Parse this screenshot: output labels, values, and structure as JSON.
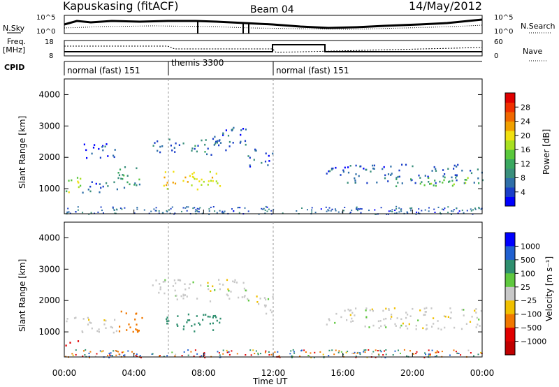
{
  "header": {
    "station": "Kapuskasing (fitACF)",
    "beam": "Beam 04",
    "date": "14/May/2012"
  },
  "top_panels": {
    "nsky_label": "N.Sky",
    "nsearch_label": "N.Search",
    "freq_label": "Freq.",
    "freq_unit": "[MHz]",
    "nave_label": "Nave",
    "cpid_label": "CPID",
    "noise_ticks_left": [
      "10^5",
      "10^0"
    ],
    "noise_ticks_right": [
      "10^5",
      "10^0"
    ],
    "freq_ticks_left": [
      "18",
      "8"
    ],
    "nave_ticks_right": [
      "60",
      "0"
    ]
  },
  "cpid_segments": [
    {
      "label": "normal (fast) 151",
      "start_hr": 0,
      "end_hr": 6
    },
    {
      "label": "themis 3300",
      "start_hr": 6,
      "end_hr": 12
    },
    {
      "label": "normal (fast) 151",
      "start_hr": 12,
      "end_hr": 24
    }
  ],
  "colors": {
    "power_scale": [
      "#0000ff",
      "#1b3fc8",
      "#2f6fa8",
      "#3a8f7c",
      "#3aa860",
      "#5ac83c",
      "#a8e020",
      "#f0e010",
      "#f0a000",
      "#f06800",
      "#f03000",
      "#e00000"
    ],
    "velocity_scale": [
      "#0000ff",
      "#1f5fd0",
      "#2f8f8f",
      "#2f9f5f",
      "#5fd03f",
      "#c8c8c8",
      "#c8c8c8",
      "#f0e010",
      "#f0a000",
      "#f07000",
      "#f03000",
      "#e00000"
    ]
  },
  "chart_data": [
    {
      "type": "heatmap",
      "title": "Power",
      "ylabel": "Slant Range [km]",
      "xlabel": "Time UT",
      "xlim": [
        0,
        24
      ],
      "ylim": [
        200,
        4500
      ],
      "x_ticks": [
        "00:00",
        "04:00",
        "08:00",
        "12:00",
        "16:00",
        "20:00",
        "00:00"
      ],
      "y_ticks": [
        1000,
        2000,
        3000,
        4000
      ],
      "colorbar_label": "Power [dB]",
      "colorbar_ticks": [
        4,
        8,
        12,
        16,
        20,
        24,
        28
      ],
      "regions": [
        {
          "t0": 0.0,
          "t1": 1.0,
          "r0": 900,
          "r1": 1500,
          "val": 16
        },
        {
          "t0": 1.0,
          "t1": 3.0,
          "r0": 900,
          "r1": 1300,
          "val": 6
        },
        {
          "t0": 1.0,
          "t1": 3.0,
          "r0": 2000,
          "r1": 2500,
          "val": 5
        },
        {
          "t0": 3.0,
          "t1": 4.5,
          "r0": 1000,
          "r1": 1800,
          "val": 10
        },
        {
          "t0": 5.0,
          "t1": 9.0,
          "r0": 2100,
          "r1": 2600,
          "val": 7
        },
        {
          "t0": 5.5,
          "t1": 9.0,
          "r0": 1000,
          "r1": 1600,
          "val": 20
        },
        {
          "t0": 8.5,
          "t1": 10.5,
          "r0": 2200,
          "r1": 3000,
          "val": 6
        },
        {
          "t0": 10.5,
          "t1": 12.0,
          "r0": 1700,
          "r1": 2300,
          "val": 6
        },
        {
          "t0": 15.0,
          "t1": 24.0,
          "r0": 1200,
          "r1": 1800,
          "val": 6
        },
        {
          "t0": 19.0,
          "t1": 24.0,
          "r0": 1100,
          "r1": 1400,
          "val": 14
        }
      ]
    },
    {
      "type": "heatmap",
      "title": "Velocity",
      "ylabel": "Slant Range [km]",
      "xlabel": "Time UT",
      "xlim": [
        0,
        24
      ],
      "ylim": [
        200,
        4500
      ],
      "x_ticks": [
        "00:00",
        "04:00",
        "08:00",
        "12:00",
        "16:00",
        "20:00",
        "00:00"
      ],
      "y_ticks": [
        1000,
        2000,
        3000,
        4000
      ],
      "colorbar_label": "Velocity [m s⁻¹]",
      "colorbar_ticks": [
        "1000",
        "500",
        "100",
        "25",
        "−25",
        "−100",
        "−500",
        "−1000"
      ],
      "regions": [
        {
          "t0": 0.0,
          "t1": 0.8,
          "r0": 550,
          "r1": 750,
          "val": -600
        },
        {
          "t0": 0.0,
          "t1": 3.0,
          "r0": 1000,
          "r1": 1500,
          "val": 0
        },
        {
          "t0": 3.0,
          "t1": 4.5,
          "r0": 1000,
          "r1": 1700,
          "val": -300
        },
        {
          "t0": 5.0,
          "t1": 10.5,
          "r0": 2000,
          "r1": 2700,
          "val": 0
        },
        {
          "t0": 5.5,
          "t1": 9.0,
          "r0": 1000,
          "r1": 1600,
          "val": 150
        },
        {
          "t0": 10.5,
          "t1": 12.0,
          "r0": 1600,
          "r1": 2200,
          "val": 0
        },
        {
          "t0": 15.0,
          "t1": 24.0,
          "r0": 1100,
          "r1": 1800,
          "val": 0
        }
      ]
    }
  ]
}
